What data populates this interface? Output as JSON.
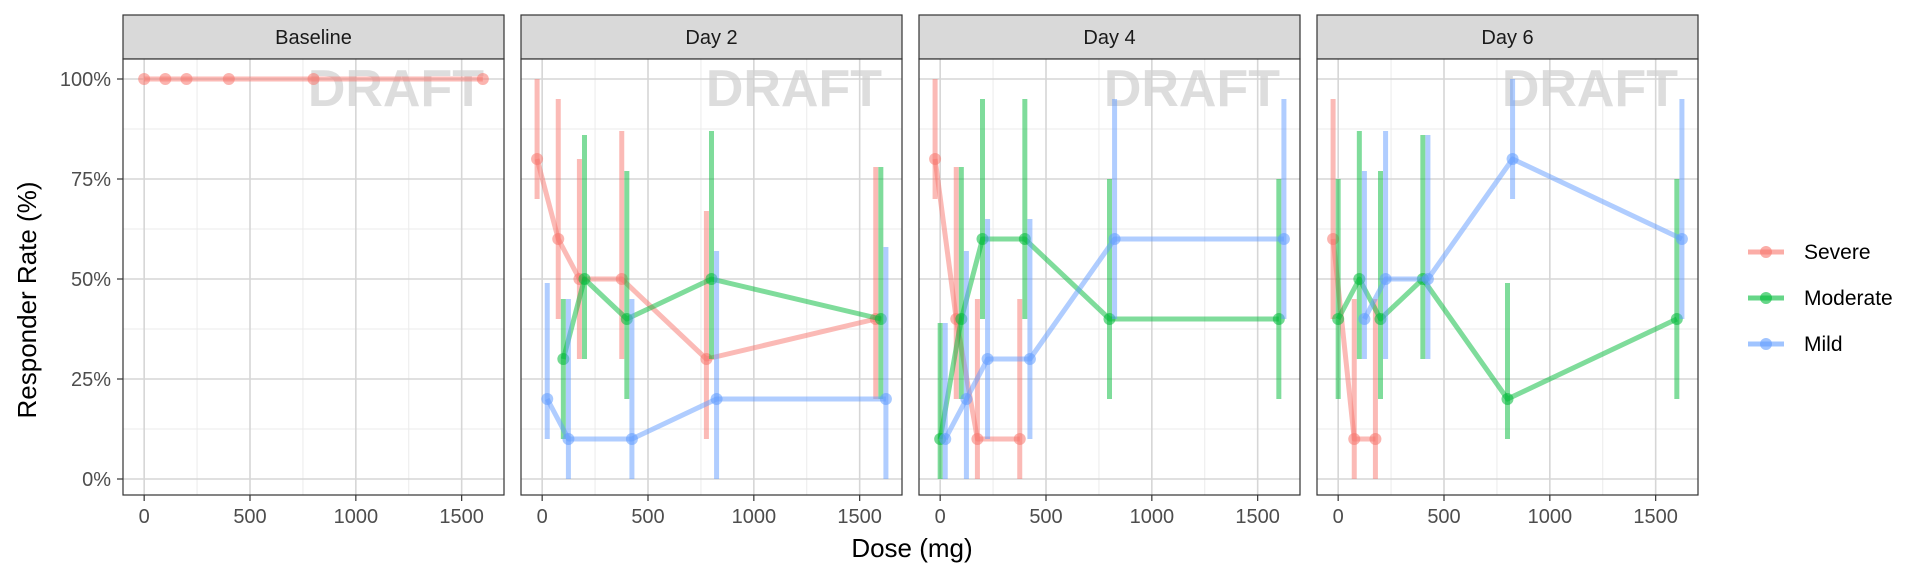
{
  "chart_data": {
    "type": "line",
    "xlabel": "Dose (mg)",
    "ylabel": "Responder Rate (%)",
    "xlim": [
      -100,
      1700
    ],
    "ylim": [
      -0.04,
      1.05
    ],
    "x_ticks": [
      0,
      500,
      1000,
      1500
    ],
    "x_tick_labels": [
      "0",
      "500",
      "1000",
      "1500"
    ],
    "y_ticks": [
      0,
      0.25,
      0.5,
      0.75,
      1.0
    ],
    "y_tick_labels": [
      "0%",
      "25%",
      "50%",
      "75%",
      "100%"
    ],
    "grid": true,
    "legend_position": "right",
    "watermark": "DRAFT",
    "colors": {
      "Severe": "#F8766D",
      "Moderate": "#00BA38",
      "Mild": "#619CFF"
    },
    "legend": [
      "Severe",
      "Moderate",
      "Mild"
    ],
    "panels": [
      {
        "title": "Baseline",
        "series": [
          {
            "name": "Severe",
            "points": [
              {
                "x": 0,
                "y": 1.0,
                "lo": 1.0,
                "hi": 1.0
              },
              {
                "x": 100,
                "y": 1.0,
                "lo": 1.0,
                "hi": 1.0
              },
              {
                "x": 200,
                "y": 1.0,
                "lo": 1.0,
                "hi": 1.0
              },
              {
                "x": 400,
                "y": 1.0,
                "lo": 1.0,
                "hi": 1.0
              },
              {
                "x": 800,
                "y": 1.0,
                "lo": 1.0,
                "hi": 1.0
              },
              {
                "x": 1600,
                "y": 1.0,
                "lo": 1.0,
                "hi": 1.0
              }
            ]
          }
        ]
      },
      {
        "title": "Day 2",
        "series": [
          {
            "name": "Severe",
            "points": [
              {
                "x": 0,
                "y": 0.8,
                "lo": 0.7,
                "hi": 1.0
              },
              {
                "x": 100,
                "y": 0.6,
                "lo": 0.4,
                "hi": 0.95
              },
              {
                "x": 200,
                "y": 0.5,
                "lo": 0.3,
                "hi": 0.8
              },
              {
                "x": 400,
                "y": 0.5,
                "lo": 0.3,
                "hi": 0.87
              },
              {
                "x": 800,
                "y": 0.3,
                "lo": 0.1,
                "hi": 0.67
              },
              {
                "x": 1600,
                "y": 0.4,
                "lo": 0.2,
                "hi": 0.78
              }
            ]
          },
          {
            "name": "Moderate",
            "points": [
              {
                "x": 100,
                "y": 0.3,
                "lo": 0.1,
                "hi": 0.45
              },
              {
                "x": 200,
                "y": 0.5,
                "lo": 0.3,
                "hi": 0.86
              },
              {
                "x": 400,
                "y": 0.4,
                "lo": 0.2,
                "hi": 0.77
              },
              {
                "x": 800,
                "y": 0.5,
                "lo": 0.3,
                "hi": 0.87
              },
              {
                "x": 1600,
                "y": 0.4,
                "lo": 0.2,
                "hi": 0.78
              }
            ]
          },
          {
            "name": "Mild",
            "points": [
              {
                "x": 0,
                "y": 0.2,
                "lo": 0.1,
                "hi": 0.49
              },
              {
                "x": 100,
                "y": 0.1,
                "lo": 0.0,
                "hi": 0.45
              },
              {
                "x": 400,
                "y": 0.1,
                "lo": 0.0,
                "hi": 0.45
              },
              {
                "x": 800,
                "y": 0.2,
                "lo": 0.0,
                "hi": 0.57
              },
              {
                "x": 1600,
                "y": 0.2,
                "lo": 0.0,
                "hi": 0.58
              }
            ]
          }
        ]
      },
      {
        "title": "Day 4",
        "series": [
          {
            "name": "Severe",
            "points": [
              {
                "x": 0,
                "y": 0.8,
                "lo": 0.7,
                "hi": 1.0
              },
              {
                "x": 100,
                "y": 0.4,
                "lo": 0.2,
                "hi": 0.78
              },
              {
                "x": 200,
                "y": 0.1,
                "lo": 0.0,
                "hi": 0.45
              },
              {
                "x": 400,
                "y": 0.1,
                "lo": 0.0,
                "hi": 0.45
              }
            ]
          },
          {
            "name": "Moderate",
            "points": [
              {
                "x": 0,
                "y": 0.1,
                "lo": 0.0,
                "hi": 0.39
              },
              {
                "x": 100,
                "y": 0.4,
                "lo": 0.2,
                "hi": 0.78
              },
              {
                "x": 200,
                "y": 0.6,
                "lo": 0.4,
                "hi": 0.95
              },
              {
                "x": 400,
                "y": 0.6,
                "lo": 0.4,
                "hi": 0.95
              },
              {
                "x": 800,
                "y": 0.4,
                "lo": 0.2,
                "hi": 0.75
              },
              {
                "x": 1600,
                "y": 0.4,
                "lo": 0.2,
                "hi": 0.75
              }
            ]
          },
          {
            "name": "Mild",
            "points": [
              {
                "x": 0,
                "y": 0.1,
                "lo": 0.0,
                "hi": 0.39
              },
              {
                "x": 100,
                "y": 0.2,
                "lo": 0.0,
                "hi": 0.57
              },
              {
                "x": 200,
                "y": 0.3,
                "lo": 0.1,
                "hi": 0.65
              },
              {
                "x": 400,
                "y": 0.3,
                "lo": 0.1,
                "hi": 0.65
              },
              {
                "x": 800,
                "y": 0.6,
                "lo": 0.4,
                "hi": 0.95
              },
              {
                "x": 1600,
                "y": 0.6,
                "lo": 0.4,
                "hi": 0.95
              }
            ]
          }
        ]
      },
      {
        "title": "Day 6",
        "series": [
          {
            "name": "Severe",
            "points": [
              {
                "x": 0,
                "y": 0.6,
                "lo": 0.4,
                "hi": 0.95
              },
              {
                "x": 100,
                "y": 0.1,
                "lo": 0.0,
                "hi": 0.45
              },
              {
                "x": 200,
                "y": 0.1,
                "lo": 0.0,
                "hi": 0.45
              }
            ]
          },
          {
            "name": "Moderate",
            "points": [
              {
                "x": 0,
                "y": 0.4,
                "lo": 0.2,
                "hi": 0.75
              },
              {
                "x": 100,
                "y": 0.5,
                "lo": 0.3,
                "hi": 0.87
              },
              {
                "x": 200,
                "y": 0.4,
                "lo": 0.2,
                "hi": 0.77
              },
              {
                "x": 400,
                "y": 0.5,
                "lo": 0.3,
                "hi": 0.86
              },
              {
                "x": 800,
                "y": 0.2,
                "lo": 0.1,
                "hi": 0.49
              },
              {
                "x": 1600,
                "y": 0.4,
                "lo": 0.2,
                "hi": 0.75
              }
            ]
          },
          {
            "name": "Mild",
            "points": [
              {
                "x": 100,
                "y": 0.4,
                "lo": 0.3,
                "hi": 0.77
              },
              {
                "x": 200,
                "y": 0.5,
                "lo": 0.3,
                "hi": 0.87
              },
              {
                "x": 400,
                "y": 0.5,
                "lo": 0.3,
                "hi": 0.86
              },
              {
                "x": 800,
                "y": 0.8,
                "lo": 0.7,
                "hi": 1.0
              },
              {
                "x": 1600,
                "y": 0.6,
                "lo": 0.4,
                "hi": 0.95
              }
            ]
          }
        ]
      }
    ]
  }
}
